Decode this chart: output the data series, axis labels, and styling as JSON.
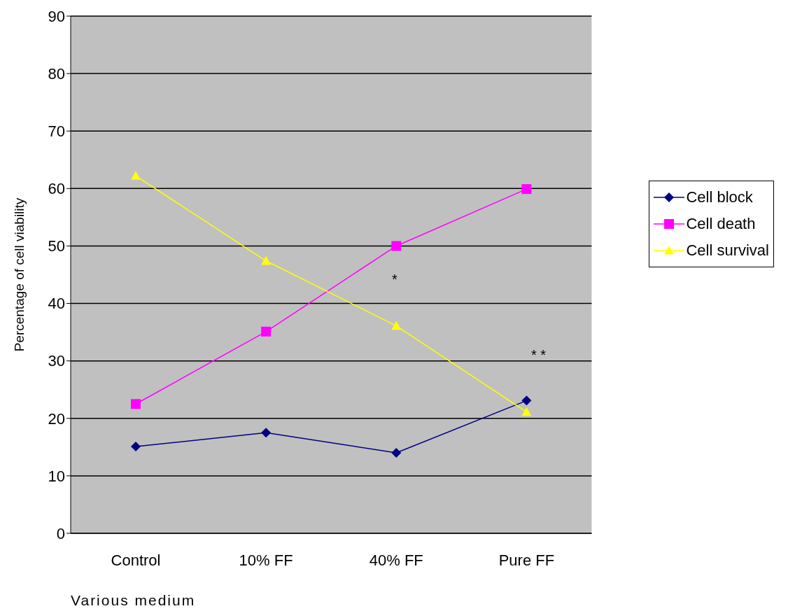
{
  "chart_data": {
    "type": "line",
    "xlabel": "Various medium",
    "ylabel": "Percentage of cell viability",
    "categories": [
      "Control",
      "10% FF",
      "40% FF",
      "Pure FF"
    ],
    "series": [
      {
        "name": "Cell block",
        "color": "#000080",
        "marker": "diamond",
        "values": [
          15.1,
          17.5,
          14.0,
          23.1
        ]
      },
      {
        "name": "Cell death",
        "color": "#ff00ff",
        "marker": "square",
        "values": [
          22.5,
          35.1,
          50.0,
          59.9
        ]
      },
      {
        "name": "Cell survival",
        "color": "#ffff00",
        "marker": "triangle",
        "values": [
          62.2,
          47.4,
          36.1,
          21.1
        ]
      }
    ],
    "ylim": [
      0,
      90
    ],
    "yticks": [
      0,
      10,
      20,
      30,
      40,
      50,
      60,
      70,
      80,
      90
    ],
    "grid": "y",
    "legend": "right",
    "annotations": [
      "*",
      "* *"
    ]
  }
}
